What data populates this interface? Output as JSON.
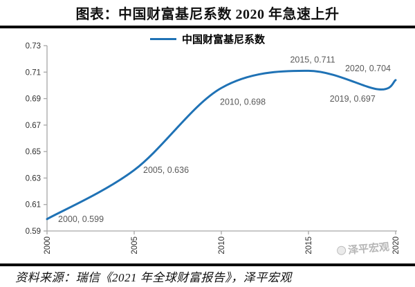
{
  "title": "图表：中国财富基尼系数 2020 年急速上升",
  "legend": {
    "label": "中国财富基尼系数"
  },
  "source": "资料来源：瑞信《2021 年全球财富报告》，泽平宏观",
  "watermark": {
    "label": "泽平宏观"
  },
  "colors": {
    "line": "#1f72b5",
    "axis": "#a6a6a6",
    "data_label": "#595959",
    "tick_text": "#303030",
    "rule": "#000000"
  },
  "chart_data": {
    "type": "line",
    "title": "图表：中国财富基尼系数 2020 年急速上升",
    "series_name": "中国财富基尼系数",
    "smooth": true,
    "grid": false,
    "legend_position": "top-center",
    "xlim": [
      2000,
      2020
    ],
    "ylim": [
      0.59,
      0.73
    ],
    "yticks": [
      "0.73",
      "0.71",
      "0.69",
      "0.67",
      "0.65",
      "0.63",
      "0.61",
      "0.59"
    ],
    "xticks": [
      "2000",
      "2005",
      "2010",
      "2015",
      "2020"
    ],
    "points": [
      {
        "x": 2000,
        "y": 0.599,
        "label": "2000, 0.599"
      },
      {
        "x": 2005,
        "y": 0.636,
        "label": "2005, 0.636"
      },
      {
        "x": 2010,
        "y": 0.698,
        "label": "2010, 0.698"
      },
      {
        "x": 2015,
        "y": 0.711,
        "label": "2015, 0.711"
      },
      {
        "x": 2019,
        "y": 0.697,
        "label": "2019, 0.697"
      },
      {
        "x": 2020,
        "y": 0.704,
        "label": "2020, 0.704"
      }
    ]
  }
}
